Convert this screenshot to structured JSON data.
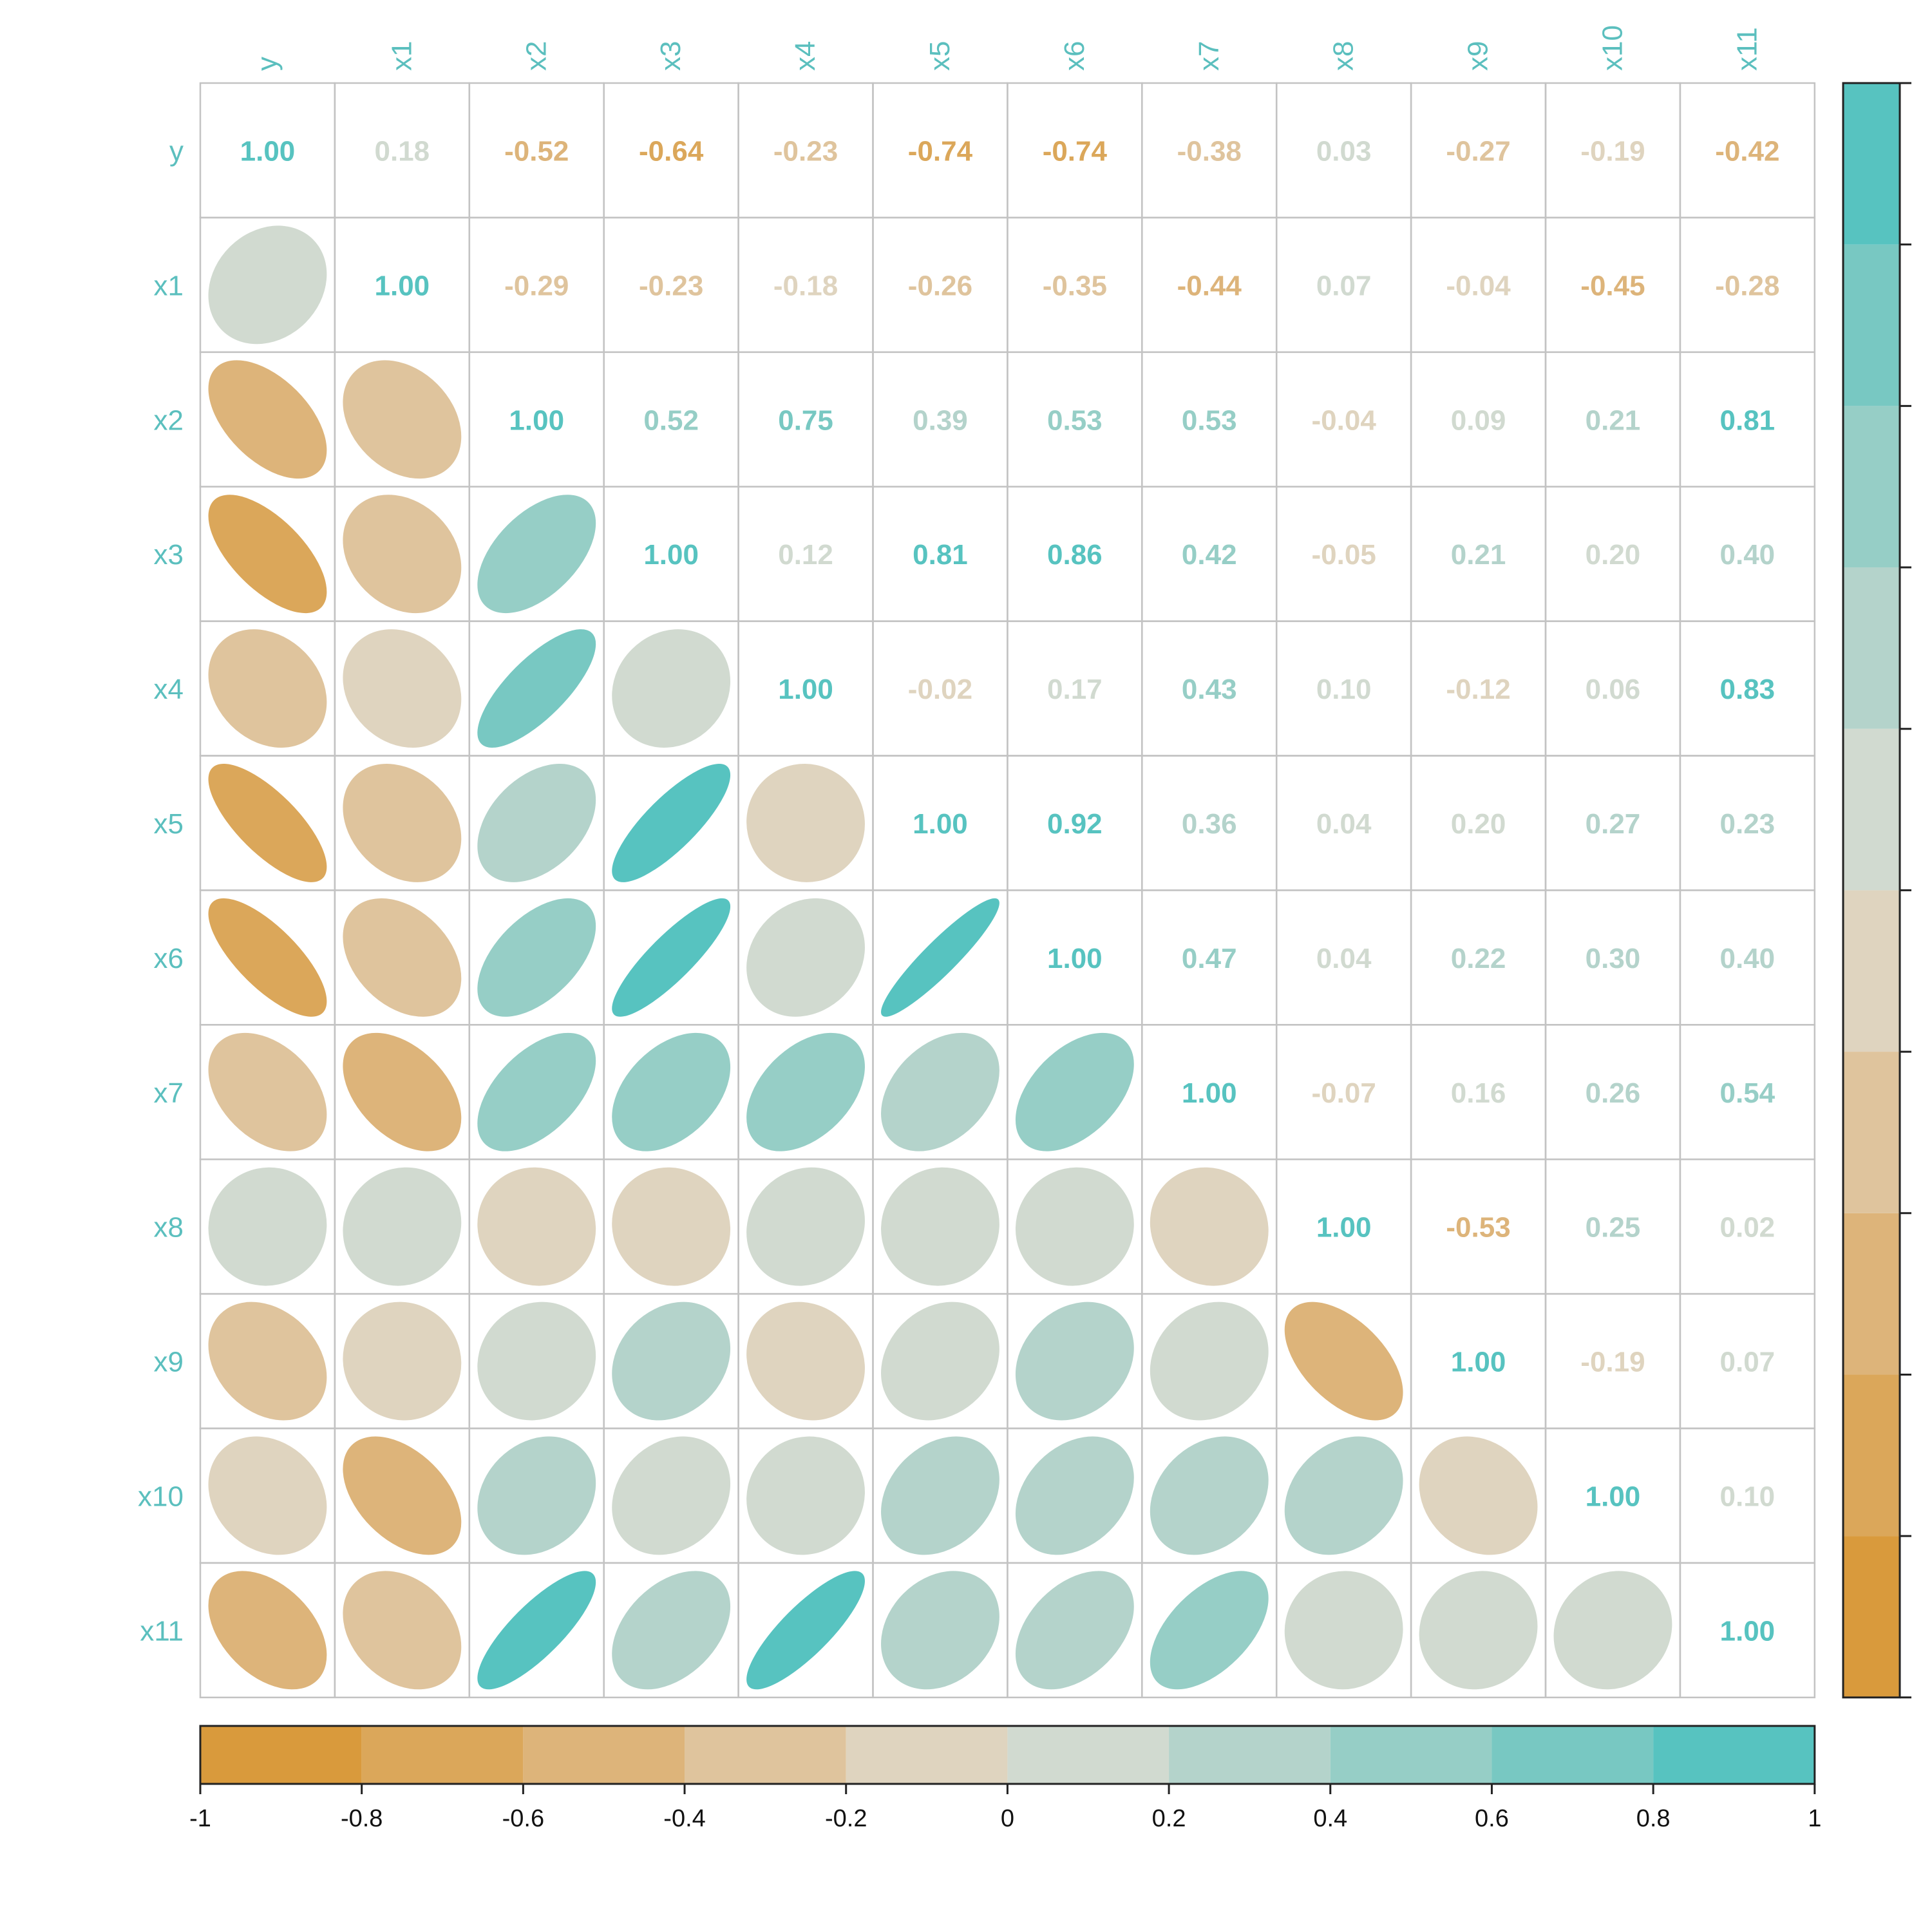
{
  "chart_data": {
    "type": "heatmap",
    "variables": [
      "y",
      "x1",
      "x2",
      "x3",
      "x4",
      "x5",
      "x6",
      "x7",
      "x8",
      "x9",
      "x10",
      "x11"
    ],
    "matrix": [
      [
        1.0,
        0.18,
        -0.52,
        -0.64,
        -0.23,
        -0.74,
        -0.74,
        -0.38,
        0.03,
        -0.27,
        -0.19,
        -0.42
      ],
      [
        0.18,
        1.0,
        -0.29,
        -0.23,
        -0.18,
        -0.26,
        -0.35,
        -0.44,
        0.07,
        -0.04,
        -0.45,
        -0.28
      ],
      [
        -0.52,
        -0.29,
        1.0,
        0.52,
        0.75,
        0.39,
        0.53,
        0.53,
        -0.04,
        0.09,
        0.21,
        0.81
      ],
      [
        -0.64,
        -0.23,
        0.52,
        1.0,
        0.12,
        0.81,
        0.86,
        0.42,
        -0.05,
        0.21,
        0.2,
        0.4
      ],
      [
        -0.23,
        -0.18,
        0.75,
        0.12,
        1.0,
        -0.02,
        0.17,
        0.43,
        0.1,
        -0.12,
        0.06,
        0.83
      ],
      [
        -0.74,
        -0.26,
        0.39,
        0.81,
        -0.02,
        1.0,
        0.92,
        0.36,
        0.04,
        0.2,
        0.27,
        0.23
      ],
      [
        -0.74,
        -0.35,
        0.53,
        0.86,
        0.17,
        0.92,
        1.0,
        0.47,
        0.04,
        0.22,
        0.3,
        0.4
      ],
      [
        -0.38,
        -0.44,
        0.53,
        0.42,
        0.43,
        0.36,
        0.47,
        1.0,
        -0.07,
        0.16,
        0.26,
        0.54
      ],
      [
        0.03,
        0.07,
        -0.04,
        -0.05,
        0.1,
        0.04,
        0.04,
        -0.07,
        1.0,
        -0.53,
        0.25,
        0.02
      ],
      [
        -0.27,
        -0.04,
        0.09,
        0.21,
        -0.12,
        0.2,
        0.22,
        0.16,
        -0.53,
        1.0,
        -0.19,
        0.07
      ],
      [
        -0.19,
        -0.45,
        0.21,
        0.2,
        0.06,
        0.27,
        0.3,
        0.26,
        0.25,
        -0.19,
        1.0,
        0.1
      ],
      [
        -0.42,
        -0.28,
        0.81,
        0.4,
        0.83,
        0.23,
        0.4,
        0.54,
        0.02,
        0.07,
        0.1,
        1.0
      ]
    ],
    "upper_display": "number",
    "lower_display": "ellipse",
    "value_range": [
      -1,
      1
    ],
    "colorbar_ticks": [
      "-1",
      "-0.8",
      "-0.6",
      "-0.4",
      "-0.2",
      "0",
      "0.2",
      "0.4",
      "0.6",
      "0.8",
      "1"
    ],
    "palette": [
      "#D99A3C",
      "#DBA75A",
      "#DDB47A",
      "#DFC49D",
      "#DFD4BF",
      "#D1DAD0",
      "#B4D3CB",
      "#96CEC6",
      "#78C8C2",
      "#57C3C0"
    ],
    "label_color": "#5BBFBE",
    "grid_color": "#C3C3C3"
  }
}
